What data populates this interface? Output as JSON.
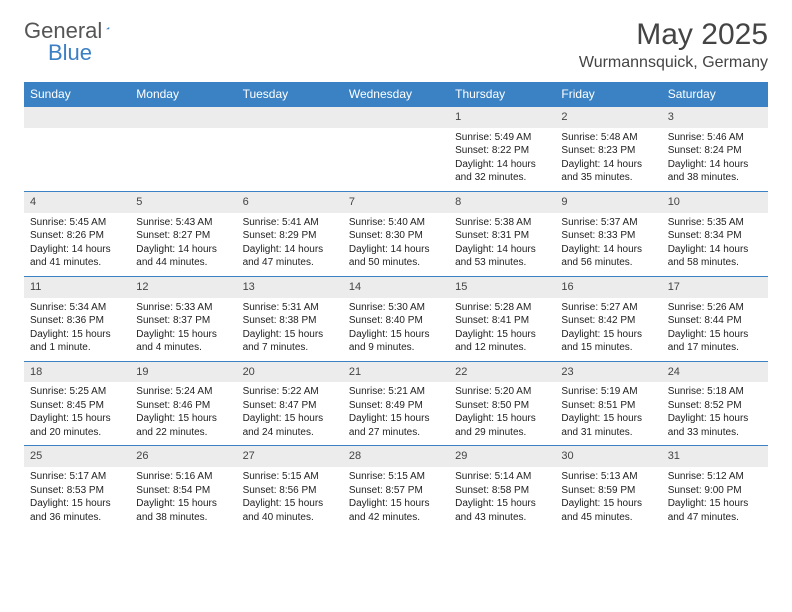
{
  "brand": {
    "name_part1": "General",
    "name_part2": "Blue"
  },
  "title": "May 2025",
  "location": "Wurmannsquick, Germany",
  "colors": {
    "header_bg": "#3b82c4",
    "header_text": "#ffffff",
    "daynum_bg": "#ececec",
    "row_border": "#3b82c4",
    "text": "#222222",
    "brand_gray": "#555555",
    "brand_blue": "#3b7fc4"
  },
  "day_names": [
    "Sunday",
    "Monday",
    "Tuesday",
    "Wednesday",
    "Thursday",
    "Friday",
    "Saturday"
  ],
  "weeks": [
    [
      null,
      null,
      null,
      null,
      {
        "n": "1",
        "sr": "Sunrise: 5:49 AM",
        "ss": "Sunset: 8:22 PM",
        "dl": "Daylight: 14 hours and 32 minutes."
      },
      {
        "n": "2",
        "sr": "Sunrise: 5:48 AM",
        "ss": "Sunset: 8:23 PM",
        "dl": "Daylight: 14 hours and 35 minutes."
      },
      {
        "n": "3",
        "sr": "Sunrise: 5:46 AM",
        "ss": "Sunset: 8:24 PM",
        "dl": "Daylight: 14 hours and 38 minutes."
      }
    ],
    [
      {
        "n": "4",
        "sr": "Sunrise: 5:45 AM",
        "ss": "Sunset: 8:26 PM",
        "dl": "Daylight: 14 hours and 41 minutes."
      },
      {
        "n": "5",
        "sr": "Sunrise: 5:43 AM",
        "ss": "Sunset: 8:27 PM",
        "dl": "Daylight: 14 hours and 44 minutes."
      },
      {
        "n": "6",
        "sr": "Sunrise: 5:41 AM",
        "ss": "Sunset: 8:29 PM",
        "dl": "Daylight: 14 hours and 47 minutes."
      },
      {
        "n": "7",
        "sr": "Sunrise: 5:40 AM",
        "ss": "Sunset: 8:30 PM",
        "dl": "Daylight: 14 hours and 50 minutes."
      },
      {
        "n": "8",
        "sr": "Sunrise: 5:38 AM",
        "ss": "Sunset: 8:31 PM",
        "dl": "Daylight: 14 hours and 53 minutes."
      },
      {
        "n": "9",
        "sr": "Sunrise: 5:37 AM",
        "ss": "Sunset: 8:33 PM",
        "dl": "Daylight: 14 hours and 56 minutes."
      },
      {
        "n": "10",
        "sr": "Sunrise: 5:35 AM",
        "ss": "Sunset: 8:34 PM",
        "dl": "Daylight: 14 hours and 58 minutes."
      }
    ],
    [
      {
        "n": "11",
        "sr": "Sunrise: 5:34 AM",
        "ss": "Sunset: 8:36 PM",
        "dl": "Daylight: 15 hours and 1 minute."
      },
      {
        "n": "12",
        "sr": "Sunrise: 5:33 AM",
        "ss": "Sunset: 8:37 PM",
        "dl": "Daylight: 15 hours and 4 minutes."
      },
      {
        "n": "13",
        "sr": "Sunrise: 5:31 AM",
        "ss": "Sunset: 8:38 PM",
        "dl": "Daylight: 15 hours and 7 minutes."
      },
      {
        "n": "14",
        "sr": "Sunrise: 5:30 AM",
        "ss": "Sunset: 8:40 PM",
        "dl": "Daylight: 15 hours and 9 minutes."
      },
      {
        "n": "15",
        "sr": "Sunrise: 5:28 AM",
        "ss": "Sunset: 8:41 PM",
        "dl": "Daylight: 15 hours and 12 minutes."
      },
      {
        "n": "16",
        "sr": "Sunrise: 5:27 AM",
        "ss": "Sunset: 8:42 PM",
        "dl": "Daylight: 15 hours and 15 minutes."
      },
      {
        "n": "17",
        "sr": "Sunrise: 5:26 AM",
        "ss": "Sunset: 8:44 PM",
        "dl": "Daylight: 15 hours and 17 minutes."
      }
    ],
    [
      {
        "n": "18",
        "sr": "Sunrise: 5:25 AM",
        "ss": "Sunset: 8:45 PM",
        "dl": "Daylight: 15 hours and 20 minutes."
      },
      {
        "n": "19",
        "sr": "Sunrise: 5:24 AM",
        "ss": "Sunset: 8:46 PM",
        "dl": "Daylight: 15 hours and 22 minutes."
      },
      {
        "n": "20",
        "sr": "Sunrise: 5:22 AM",
        "ss": "Sunset: 8:47 PM",
        "dl": "Daylight: 15 hours and 24 minutes."
      },
      {
        "n": "21",
        "sr": "Sunrise: 5:21 AM",
        "ss": "Sunset: 8:49 PM",
        "dl": "Daylight: 15 hours and 27 minutes."
      },
      {
        "n": "22",
        "sr": "Sunrise: 5:20 AM",
        "ss": "Sunset: 8:50 PM",
        "dl": "Daylight: 15 hours and 29 minutes."
      },
      {
        "n": "23",
        "sr": "Sunrise: 5:19 AM",
        "ss": "Sunset: 8:51 PM",
        "dl": "Daylight: 15 hours and 31 minutes."
      },
      {
        "n": "24",
        "sr": "Sunrise: 5:18 AM",
        "ss": "Sunset: 8:52 PM",
        "dl": "Daylight: 15 hours and 33 minutes."
      }
    ],
    [
      {
        "n": "25",
        "sr": "Sunrise: 5:17 AM",
        "ss": "Sunset: 8:53 PM",
        "dl": "Daylight: 15 hours and 36 minutes."
      },
      {
        "n": "26",
        "sr": "Sunrise: 5:16 AM",
        "ss": "Sunset: 8:54 PM",
        "dl": "Daylight: 15 hours and 38 minutes."
      },
      {
        "n": "27",
        "sr": "Sunrise: 5:15 AM",
        "ss": "Sunset: 8:56 PM",
        "dl": "Daylight: 15 hours and 40 minutes."
      },
      {
        "n": "28",
        "sr": "Sunrise: 5:15 AM",
        "ss": "Sunset: 8:57 PM",
        "dl": "Daylight: 15 hours and 42 minutes."
      },
      {
        "n": "29",
        "sr": "Sunrise: 5:14 AM",
        "ss": "Sunset: 8:58 PM",
        "dl": "Daylight: 15 hours and 43 minutes."
      },
      {
        "n": "30",
        "sr": "Sunrise: 5:13 AM",
        "ss": "Sunset: 8:59 PM",
        "dl": "Daylight: 15 hours and 45 minutes."
      },
      {
        "n": "31",
        "sr": "Sunrise: 5:12 AM",
        "ss": "Sunset: 9:00 PM",
        "dl": "Daylight: 15 hours and 47 minutes."
      }
    ]
  ]
}
